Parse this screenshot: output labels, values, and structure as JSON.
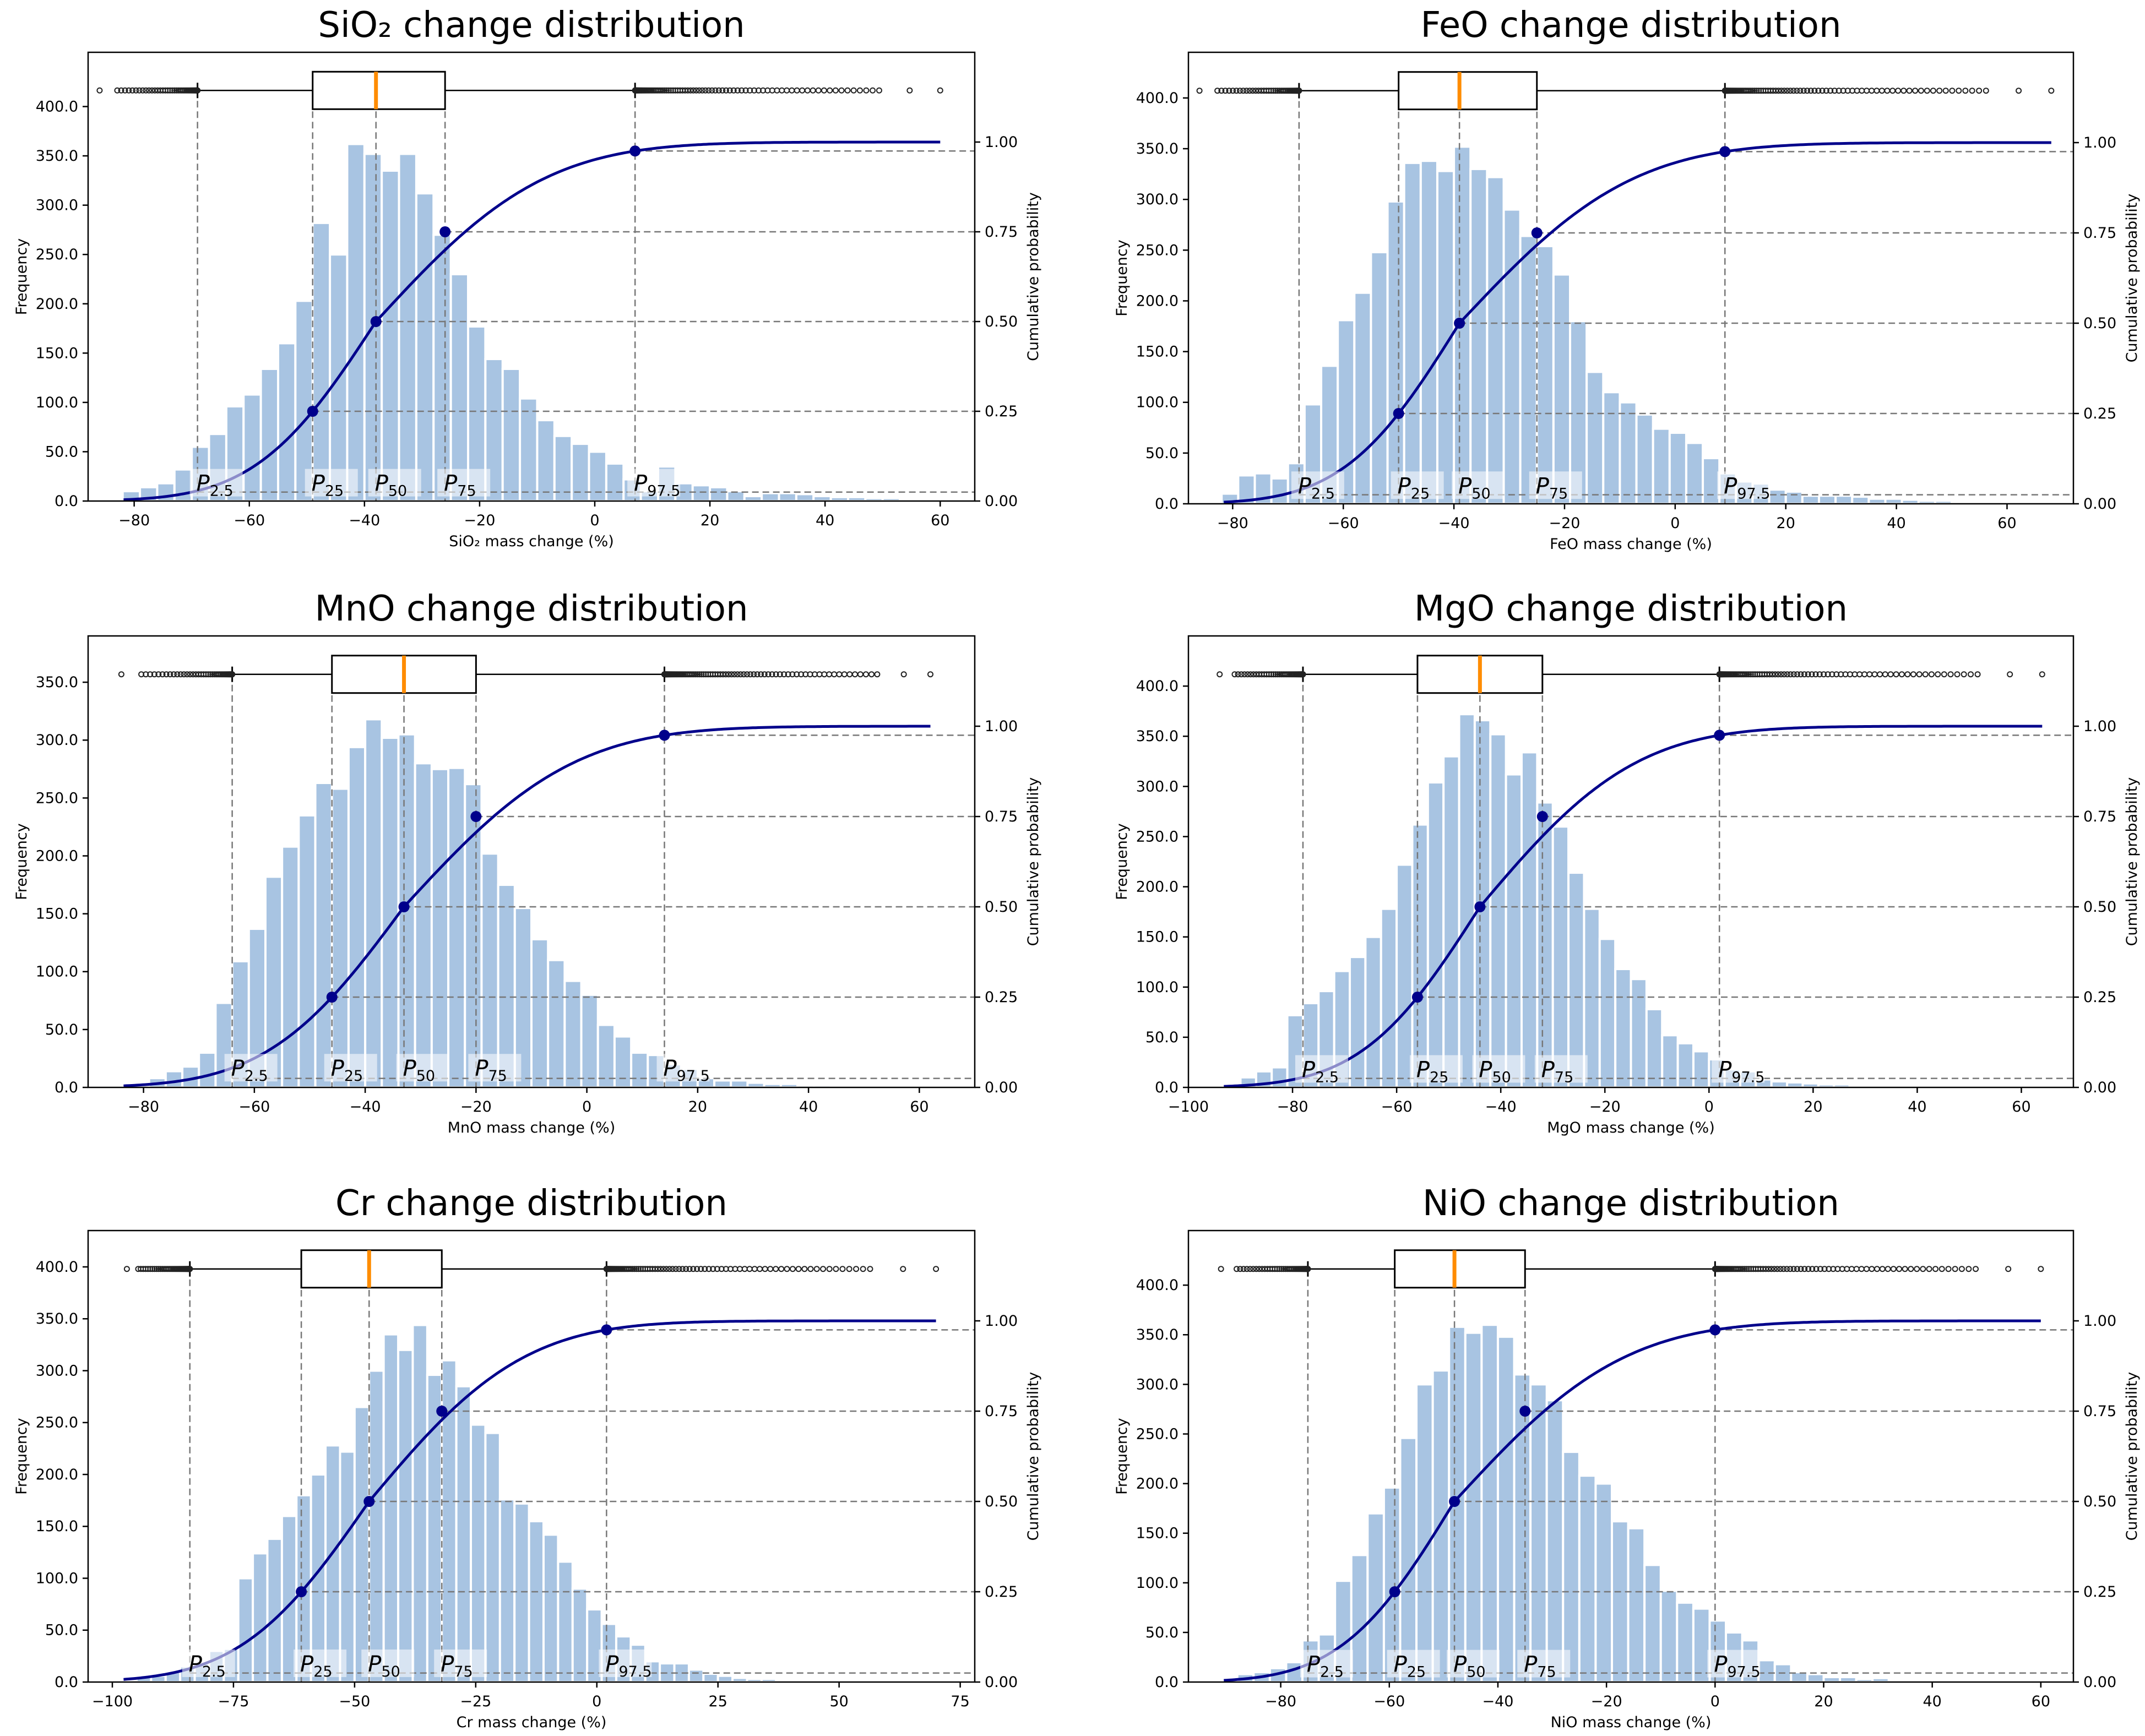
{
  "figure": {
    "colors": {
      "bar": "#a8c4e2",
      "bar_edge": "#ffffff",
      "cdf": "#00008b",
      "median": "#ff8c00",
      "guide": "#777777",
      "axis": "#000000"
    }
  },
  "chart_data": [
    {
      "type": "bar",
      "title": "SiO₂ change distribution",
      "xlabel": "SiO₂ mass change (%)",
      "ylabel": "Frequency",
      "y2label": "Cumulative probability",
      "xlim": [
        -88,
        66
      ],
      "ylim": [
        0,
        455
      ],
      "y2lim": [
        0,
        1.25
      ],
      "xticks": [
        -80,
        -60,
        -40,
        -20,
        0,
        20,
        40,
        60
      ],
      "xtick_labels": [
        "−80",
        "−60",
        "−40",
        "−20",
        "0",
        "20",
        "40",
        "60"
      ],
      "yticks": [
        0,
        50,
        100,
        150,
        200,
        250,
        300,
        350,
        400
      ],
      "ytick_labels": [
        "0.0",
        "50.0",
        "100.0",
        "150.0",
        "200.0",
        "250.0",
        "300.0",
        "350.0",
        "400.0"
      ],
      "y2ticks": [
        0,
        0.25,
        0.5,
        0.75,
        1.0
      ],
      "y2tick_labels": [
        "0.00",
        "0.25",
        "0.50",
        "0.75",
        "1.00"
      ],
      "bin_start": -82,
      "bin_width": 3,
      "values": [
        10,
        14,
        18,
        32,
        55,
        68,
        96,
        108,
        134,
        160,
        203,
        282,
        250,
        362,
        352,
        335,
        352,
        312,
        270,
        230,
        177,
        144,
        134,
        104,
        82,
        66,
        58,
        50,
        38,
        22,
        10,
        35,
        18,
        16,
        14,
        10,
        5,
        8,
        8,
        7,
        5,
        4,
        4,
        3,
        3,
        2,
        2,
        1
      ],
      "percentiles": {
        "p2_5": -69,
        "p25": -49,
        "p50": -38,
        "p75": -26,
        "p97_5": 7
      },
      "percentile_labels": [
        {
          "main": "P",
          "sub": "2.5"
        },
        {
          "main": "P",
          "sub": "25"
        },
        {
          "main": "P",
          "sub": "50"
        },
        {
          "main": "P",
          "sub": "75"
        },
        {
          "main": "P",
          "sub": "97.5"
        }
      ],
      "whisker_min": -86,
      "whisker_max": 60
    },
    {
      "type": "bar",
      "title": "FeO change distribution",
      "xlabel": "FeO mass change (%)",
      "ylabel": "Frequency",
      "y2label": "Cumulative probability",
      "xlim": [
        -88,
        72
      ],
      "ylim": [
        0,
        445
      ],
      "y2lim": [
        0,
        1.25
      ],
      "xticks": [
        -80,
        -60,
        -40,
        -20,
        0,
        20,
        40,
        60
      ],
      "xtick_labels": [
        "−80",
        "−60",
        "−40",
        "−20",
        "0",
        "20",
        "40",
        "60"
      ],
      "yticks": [
        0,
        50,
        100,
        150,
        200,
        250,
        300,
        350,
        400
      ],
      "ytick_labels": [
        "0.0",
        "50.0",
        "100.0",
        "150.0",
        "200.0",
        "250.0",
        "300.0",
        "350.0",
        "400.0"
      ],
      "y2ticks": [
        0,
        0.25,
        0.5,
        0.75,
        1.0
      ],
      "y2tick_labels": [
        "0.00",
        "0.25",
        "0.50",
        "0.75",
        "1.00"
      ],
      "bin_start": -82,
      "bin_width": 3,
      "values": [
        10,
        28,
        30,
        25,
        40,
        98,
        136,
        181,
        208,
        248,
        298,
        336,
        338,
        328,
        352,
        330,
        322,
        290,
        264,
        254,
        226,
        180,
        130,
        110,
        100,
        88,
        74,
        70,
        60,
        45,
        30,
        22,
        20,
        14,
        12,
        8,
        8,
        8,
        7,
        5,
        5,
        4,
        3,
        3,
        2,
        2,
        1,
        1
      ],
      "percentiles": {
        "p2_5": -68,
        "p25": -50,
        "p50": -39,
        "p75": -25,
        "p97_5": 9
      },
      "percentile_labels": [
        {
          "main": "P",
          "sub": "2.5"
        },
        {
          "main": "P",
          "sub": "25"
        },
        {
          "main": "P",
          "sub": "50"
        },
        {
          "main": "P",
          "sub": "75"
        },
        {
          "main": "P",
          "sub": "97.5"
        }
      ],
      "whisker_min": -86,
      "whisker_max": 68
    },
    {
      "type": "bar",
      "title": "MnO change distribution",
      "xlabel": "MnO mass change (%)",
      "ylabel": "Frequency",
      "y2label": "Cumulative probability",
      "xlim": [
        -90,
        70
      ],
      "ylim": [
        0,
        390
      ],
      "y2lim": [
        0,
        1.25
      ],
      "xticks": [
        -80,
        -60,
        -40,
        -20,
        0,
        20,
        40,
        60
      ],
      "xtick_labels": [
        "−80",
        "−60",
        "−40",
        "−20",
        "0",
        "20",
        "40",
        "60"
      ],
      "yticks": [
        0,
        50,
        100,
        150,
        200,
        250,
        300,
        350
      ],
      "ytick_labels": [
        "0.0",
        "50.0",
        "100.0",
        "150.0",
        "200.0",
        "250.0",
        "300.0",
        "350.0"
      ],
      "y2ticks": [
        0,
        0.25,
        0.5,
        0.75,
        1.0
      ],
      "y2tick_labels": [
        "0.00",
        "0.25",
        "0.50",
        "0.75",
        "1.00"
      ],
      "bin_start": -79,
      "bin_width": 3,
      "values": [
        8,
        14,
        18,
        30,
        73,
        109,
        137,
        182,
        208,
        235,
        263,
        258,
        294,
        318,
        302,
        305,
        280,
        275,
        276,
        262,
        202,
        175,
        155,
        128,
        110,
        92,
        80,
        54,
        44,
        30,
        28,
        20,
        16,
        8,
        6,
        6,
        4,
        3,
        3,
        2,
        2,
        1
      ],
      "percentiles": {
        "p2_5": -64,
        "p25": -46,
        "p50": -33,
        "p75": -20,
        "p97_5": 14
      },
      "percentile_labels": [
        {
          "main": "P",
          "sub": "2.5"
        },
        {
          "main": "P",
          "sub": "25"
        },
        {
          "main": "P",
          "sub": "50"
        },
        {
          "main": "P",
          "sub": "75"
        },
        {
          "main": "P",
          "sub": "97.5"
        }
      ],
      "whisker_min": -84,
      "whisker_max": 62
    },
    {
      "type": "bar",
      "title": "MgO change distribution",
      "xlabel": "MgO mass change (%)",
      "ylabel": "Frequency",
      "y2label": "Cumulative probability",
      "xlim": [
        -100,
        70
      ],
      "ylim": [
        0,
        450
      ],
      "y2lim": [
        0,
        1.25
      ],
      "xticks": [
        -100,
        -80,
        -60,
        -40,
        -20,
        0,
        20,
        40,
        60
      ],
      "xtick_labels": [
        "−100",
        "−80",
        "−60",
        "−40",
        "−20",
        "0",
        "20",
        "40",
        "60"
      ],
      "yticks": [
        0,
        50,
        100,
        150,
        200,
        250,
        300,
        350,
        400
      ],
      "ytick_labels": [
        "0.0",
        "50.0",
        "100.0",
        "150.0",
        "200.0",
        "250.0",
        "300.0",
        "350.0",
        "400.0"
      ],
      "y2ticks": [
        0,
        0.25,
        0.5,
        0.75,
        1.0
      ],
      "y2tick_labels": [
        "0.00",
        "0.25",
        "0.50",
        "0.75",
        "1.00"
      ],
      "bin_start": -90,
      "bin_width": 3,
      "values": [
        10,
        16,
        20,
        72,
        84,
        96,
        116,
        130,
        150,
        178,
        222,
        262,
        304,
        330,
        372,
        366,
        352,
        312,
        334,
        284,
        260,
        214,
        178,
        148,
        118,
        108,
        78,
        52,
        44,
        36,
        28,
        18,
        16,
        8,
        6,
        5,
        4,
        3,
        3,
        2,
        2,
        1,
        1,
        1
      ],
      "percentiles": {
        "p2_5": -78,
        "p25": -56,
        "p50": -44,
        "p75": -32,
        "p97_5": 2
      },
      "percentile_labels": [
        {
          "main": "P",
          "sub": "2.5"
        },
        {
          "main": "P",
          "sub": "25"
        },
        {
          "main": "P",
          "sub": "50"
        },
        {
          "main": "P",
          "sub": "75"
        },
        {
          "main": "P",
          "sub": "97.5"
        }
      ],
      "whisker_min": -94,
      "whisker_max": 64
    },
    {
      "type": "bar",
      "title": "Cr change distribution",
      "xlabel": "Cr mass change (%)",
      "ylabel": "Frequency",
      "y2label": "Cumulative probability",
      "xlim": [
        -105,
        78
      ],
      "ylim": [
        0,
        435
      ],
      "y2lim": [
        0,
        1.25
      ],
      "xticks": [
        -100,
        -75,
        -50,
        -25,
        0,
        25,
        50,
        75
      ],
      "xtick_labels": [
        "−100",
        "−75",
        "−50",
        "−25",
        "0",
        "25",
        "50",
        "75"
      ],
      "yticks": [
        0,
        50,
        100,
        150,
        200,
        250,
        300,
        350,
        400
      ],
      "ytick_labels": [
        "0.0",
        "50.0",
        "100.0",
        "150.0",
        "200.0",
        "250.0",
        "300.0",
        "350.0",
        "400.0"
      ],
      "y2ticks": [
        0,
        0.25,
        0.5,
        0.75,
        1.0
      ],
      "y2tick_labels": [
        "0.00",
        "0.25",
        "0.50",
        "0.75",
        "1.00"
      ],
      "bin_start": -95,
      "bin_width": 3,
      "values": [
        5,
        6,
        10,
        15,
        18,
        30,
        32,
        100,
        124,
        138,
        160,
        180,
        200,
        228,
        222,
        265,
        300,
        335,
        320,
        344,
        296,
        310,
        285,
        248,
        240,
        176,
        172,
        155,
        142,
        116,
        90,
        70,
        56,
        44,
        36,
        20,
        18,
        18,
        12,
        8,
        6,
        4,
        3,
        3,
        2,
        2,
        2,
        1,
        1,
        1,
        1,
        1
      ],
      "percentiles": {
        "p2_5": -84,
        "p25": -61,
        "p50": -47,
        "p75": -32,
        "p97_5": 2
      },
      "percentile_labels": [
        {
          "main": "P",
          "sub": "2.5"
        },
        {
          "main": "P",
          "sub": "25"
        },
        {
          "main": "P",
          "sub": "50"
        },
        {
          "main": "P",
          "sub": "75"
        },
        {
          "main": "P",
          "sub": "97.5"
        }
      ],
      "whisker_min": -97,
      "whisker_max": 70
    },
    {
      "type": "bar",
      "title": "NiO change distribution",
      "xlabel": "NiO mass change (%)",
      "ylabel": "Frequency",
      "y2label": "Cumulative probability",
      "xlim": [
        -97,
        66
      ],
      "ylim": [
        0,
        455
      ],
      "y2lim": [
        0,
        1.25
      ],
      "xticks": [
        -80,
        -60,
        -40,
        -20,
        0,
        20,
        40,
        60
      ],
      "xtick_labels": [
        "−80",
        "−60",
        "−40",
        "−20",
        "0",
        "20",
        "40",
        "60"
      ],
      "yticks": [
        0,
        50,
        100,
        150,
        200,
        250,
        300,
        350,
        400
      ],
      "ytick_labels": [
        "0.0",
        "50.0",
        "100.0",
        "150.0",
        "200.0",
        "250.0",
        "300.0",
        "350.0",
        "400.0"
      ],
      "y2ticks": [
        0,
        0.25,
        0.5,
        0.75,
        1.0
      ],
      "y2tick_labels": [
        "0.00",
        "0.25",
        "0.50",
        "0.75",
        "1.00"
      ],
      "bin_start": -88,
      "bin_width": 3,
      "values": [
        8,
        10,
        14,
        20,
        42,
        48,
        102,
        128,
        170,
        196,
        246,
        300,
        314,
        358,
        352,
        360,
        348,
        310,
        300,
        284,
        232,
        208,
        200,
        162,
        155,
        118,
        92,
        80,
        74,
        62,
        50,
        42,
        22,
        18,
        10,
        8,
        5,
        5,
        3,
        4,
        2,
        2,
        1,
        2,
        1,
        1,
        1,
        1,
        1,
        1
      ],
      "percentiles": {
        "p2_5": -75,
        "p25": -59,
        "p50": -48,
        "p75": -35,
        "p97_5": 0
      },
      "percentile_labels": [
        {
          "main": "P",
          "sub": "2.5"
        },
        {
          "main": "P",
          "sub": "25"
        },
        {
          "main": "P",
          "sub": "50"
        },
        {
          "main": "P",
          "sub": "75"
        },
        {
          "main": "P",
          "sub": "97.5"
        }
      ],
      "whisker_min": -91,
      "whisker_max": 60
    }
  ]
}
